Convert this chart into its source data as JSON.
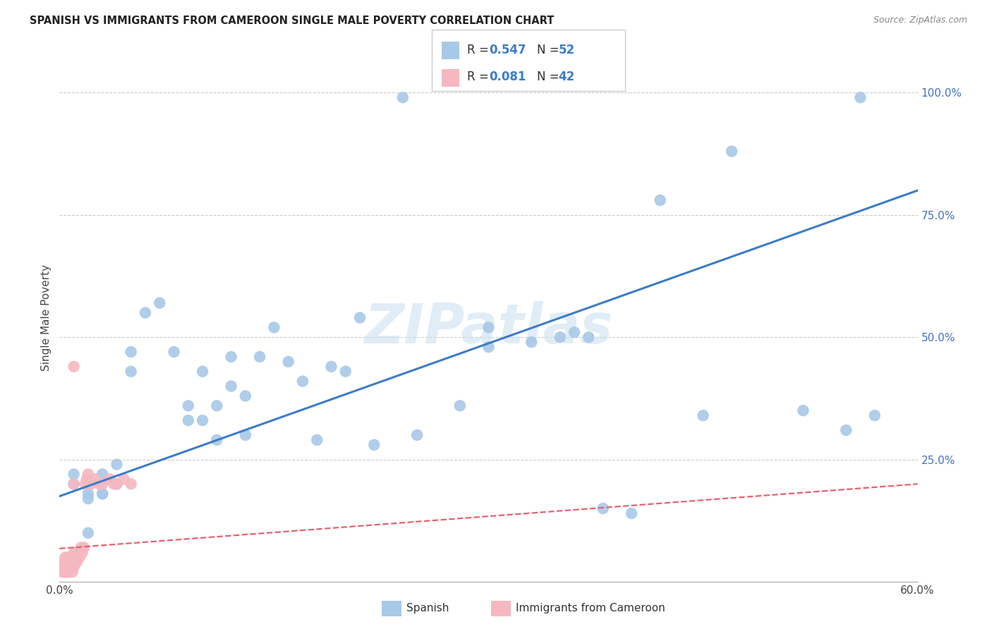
{
  "title": "SPANISH VS IMMIGRANTS FROM CAMEROON SINGLE MALE POVERTY CORRELATION CHART",
  "source": "Source: ZipAtlas.com",
  "ylabel": "Single Male Poverty",
  "xlim": [
    0.0,
    0.6
  ],
  "ylim": [
    0.0,
    1.08
  ],
  "blue_color": "#a8c8e8",
  "pink_color": "#f5b8c0",
  "blue_line_color": "#3d7cc9",
  "pink_line_color": "#e8606e",
  "watermark": "ZIPatlas",
  "R_blue": "0.547",
  "N_blue": "52",
  "R_pink": "0.081",
  "N_pink": "42",
  "blue_trendline_x": [
    0.0,
    0.6
  ],
  "blue_trendline_y": [
    0.175,
    0.8
  ],
  "pink_trendline_x": [
    0.0,
    0.6
  ],
  "pink_trendline_y": [
    0.068,
    0.2
  ],
  "spanish_x": [
    0.24,
    0.56,
    0.47,
    0.42,
    0.36,
    0.35,
    0.33,
    0.3,
    0.3,
    0.28,
    0.25,
    0.22,
    0.21,
    0.2,
    0.19,
    0.18,
    0.17,
    0.16,
    0.15,
    0.14,
    0.13,
    0.13,
    0.12,
    0.12,
    0.11,
    0.11,
    0.1,
    0.1,
    0.09,
    0.09,
    0.08,
    0.07,
    0.06,
    0.05,
    0.05,
    0.04,
    0.04,
    0.03,
    0.03,
    0.03,
    0.02,
    0.02,
    0.02,
    0.01,
    0.01,
    0.38,
    0.4,
    0.45,
    0.52,
    0.55,
    0.57,
    0.37
  ],
  "spanish_y": [
    0.99,
    0.99,
    0.88,
    0.78,
    0.51,
    0.5,
    0.49,
    0.52,
    0.48,
    0.36,
    0.3,
    0.28,
    0.54,
    0.43,
    0.44,
    0.29,
    0.41,
    0.45,
    0.52,
    0.46,
    0.3,
    0.38,
    0.46,
    0.4,
    0.36,
    0.29,
    0.43,
    0.33,
    0.33,
    0.36,
    0.47,
    0.57,
    0.55,
    0.43,
    0.47,
    0.2,
    0.24,
    0.18,
    0.22,
    0.18,
    0.17,
    0.18,
    0.1,
    0.2,
    0.22,
    0.15,
    0.14,
    0.34,
    0.35,
    0.31,
    0.34,
    0.5
  ],
  "cameroon_x": [
    0.002,
    0.003,
    0.003,
    0.004,
    0.004,
    0.005,
    0.005,
    0.005,
    0.006,
    0.006,
    0.007,
    0.007,
    0.008,
    0.008,
    0.009,
    0.009,
    0.01,
    0.01,
    0.01,
    0.011,
    0.011,
    0.012,
    0.012,
    0.013,
    0.014,
    0.015,
    0.016,
    0.017,
    0.018,
    0.019,
    0.02,
    0.022,
    0.025,
    0.028,
    0.03,
    0.035,
    0.038,
    0.04,
    0.045,
    0.05,
    0.01,
    0.01
  ],
  "cameroon_y": [
    0.02,
    0.03,
    0.04,
    0.02,
    0.05,
    0.02,
    0.03,
    0.04,
    0.02,
    0.04,
    0.03,
    0.05,
    0.03,
    0.04,
    0.02,
    0.05,
    0.03,
    0.04,
    0.06,
    0.04,
    0.05,
    0.04,
    0.06,
    0.05,
    0.05,
    0.07,
    0.06,
    0.07,
    0.2,
    0.21,
    0.22,
    0.2,
    0.21,
    0.2,
    0.2,
    0.21,
    0.2,
    0.2,
    0.21,
    0.2,
    0.44,
    0.2
  ]
}
